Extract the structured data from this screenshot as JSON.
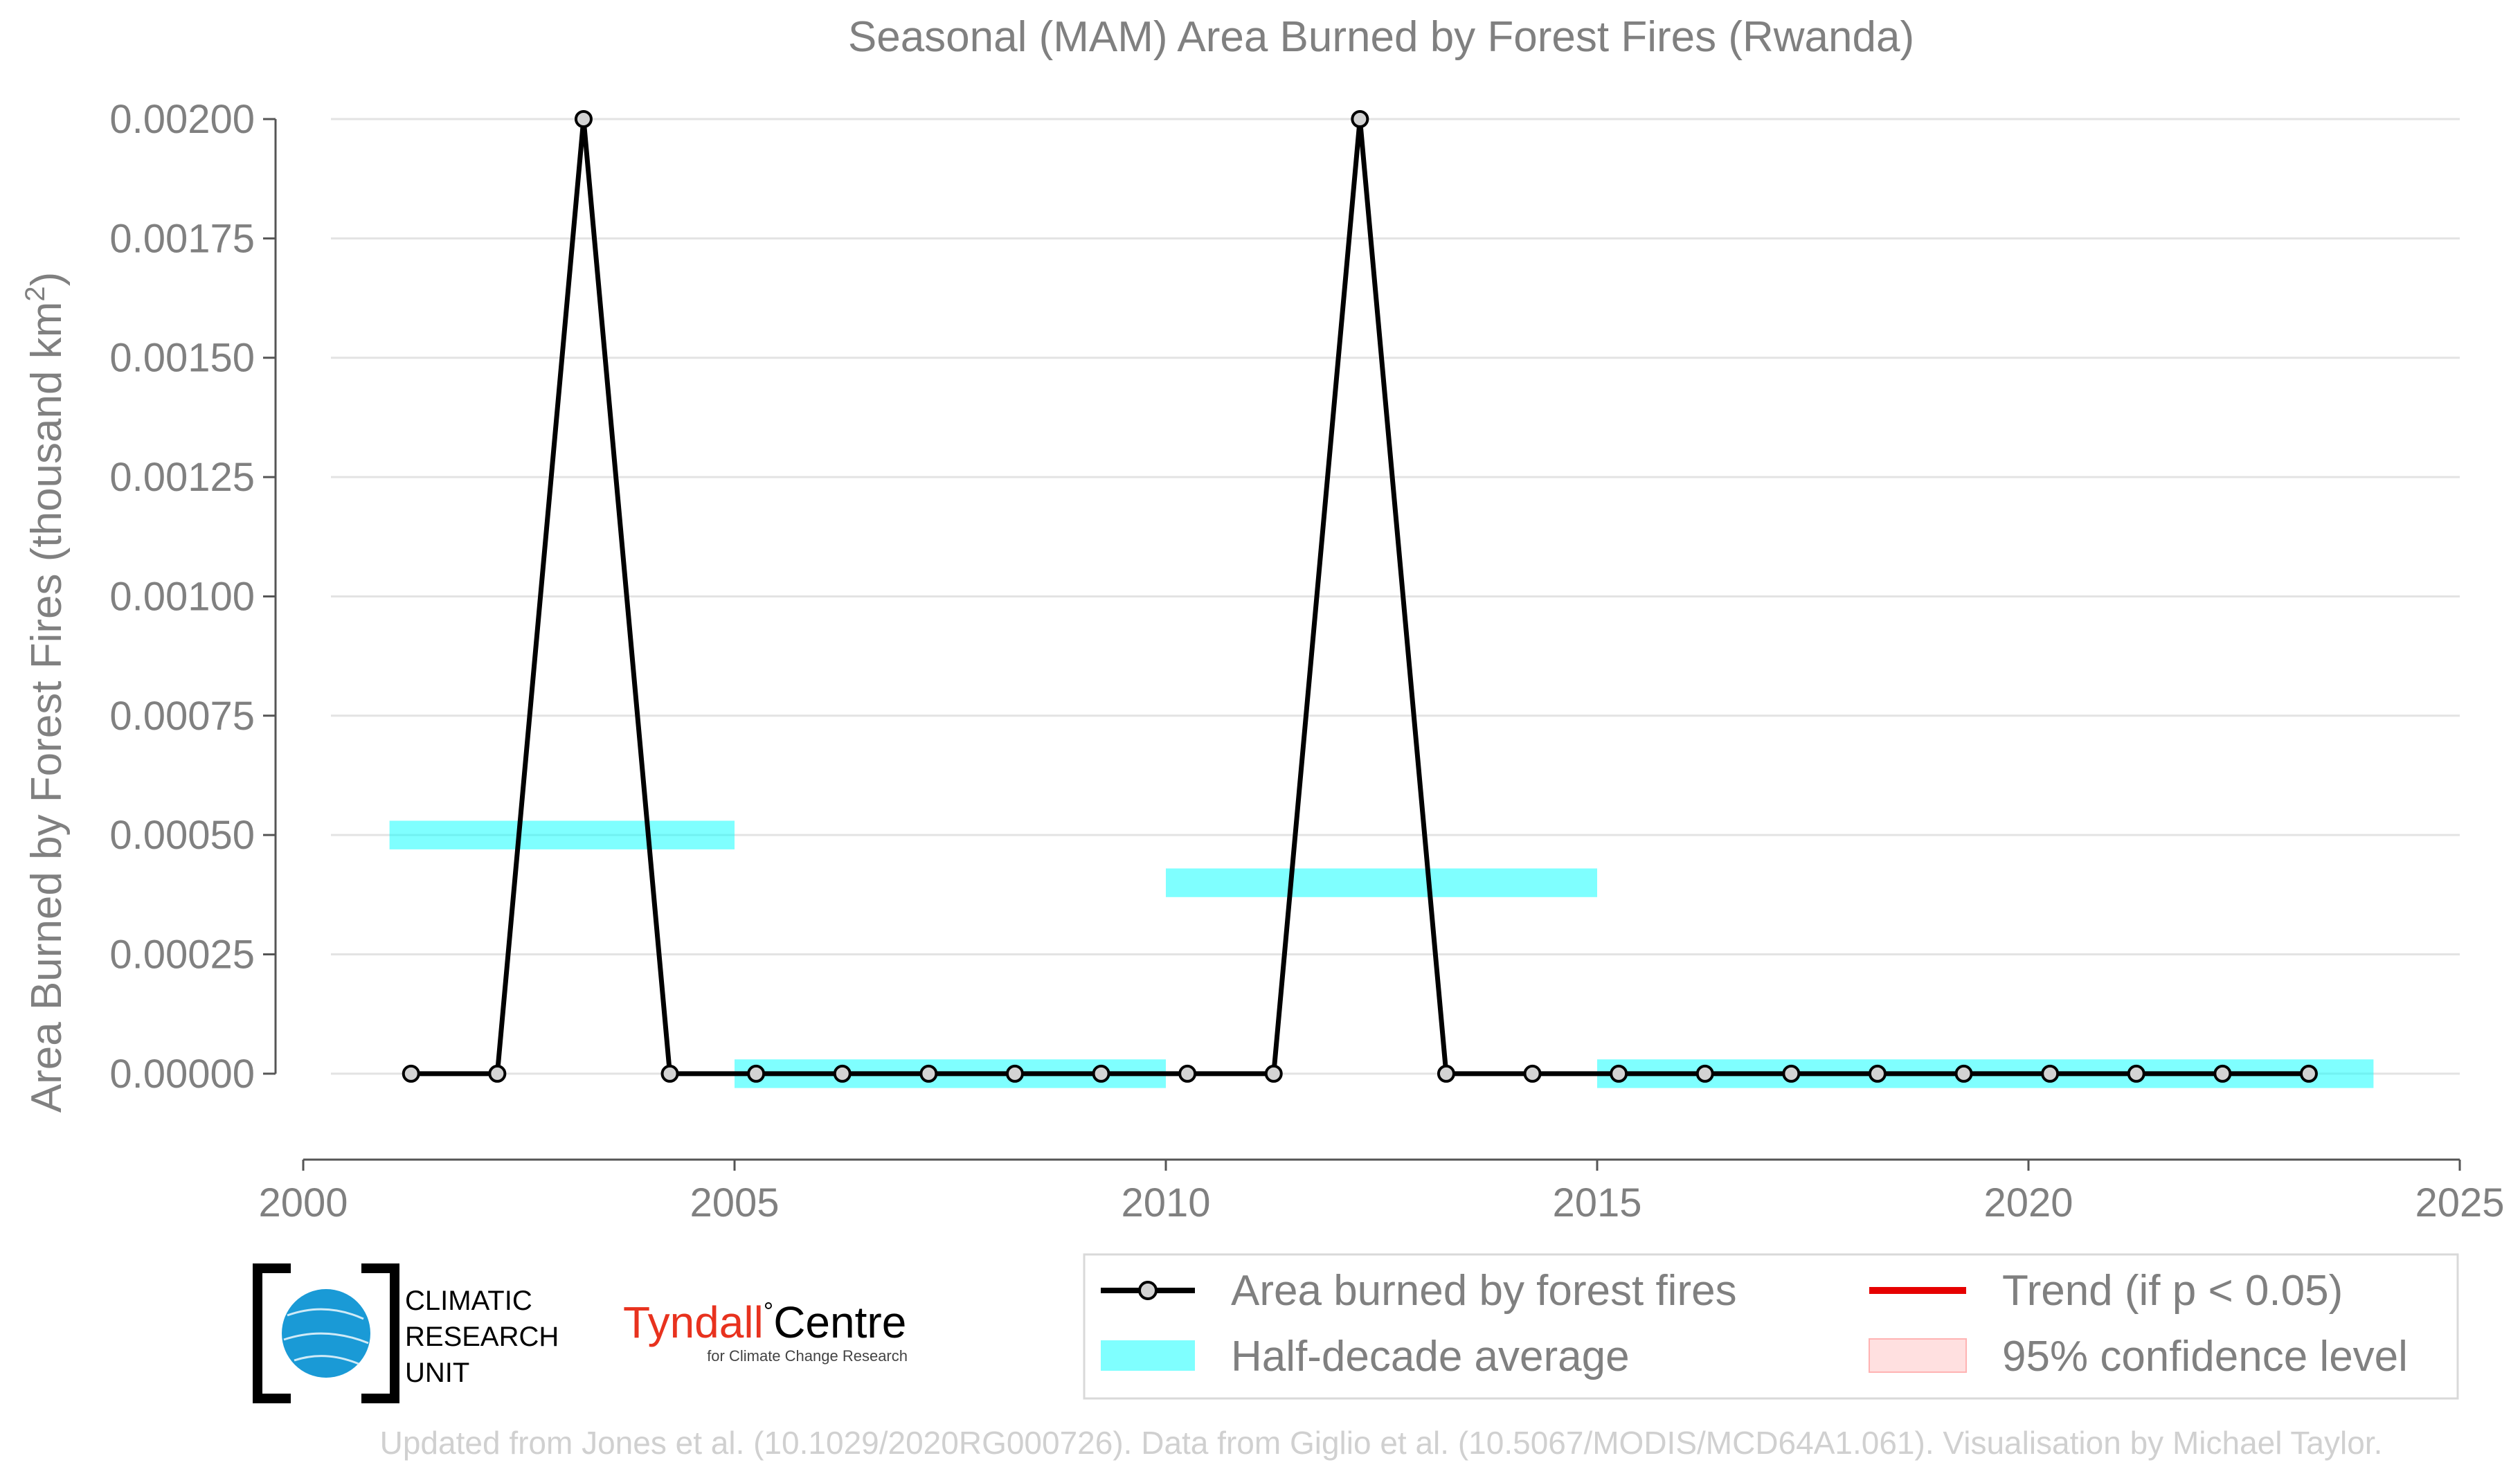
{
  "chart_data": {
    "type": "line",
    "title": "Seasonal (MAM) Area Burned by Forest Fires (Rwanda)",
    "ylabel": "Area Burned by Forest Fires (thousand km",
    "ylabel_sup": "2",
    "ylabel_end": ")",
    "xlabel": "",
    "xlim": [
      2000,
      2025
    ],
    "ylim": [
      -0.00018,
      0.002
    ],
    "x_ticks": [
      2000,
      2005,
      2010,
      2015,
      2020,
      2025
    ],
    "y_ticks": [
      0.0,
      0.00025,
      0.0005,
      0.00075,
      0.001,
      0.00125,
      0.0015,
      0.00175,
      0.002
    ],
    "y_tick_labels": [
      "0.00000",
      "0.00025",
      "0.00050",
      "0.00075",
      "0.00100",
      "0.00125",
      "0.00150",
      "0.00175",
      "0.00200"
    ],
    "grid": "horizontal",
    "series": [
      {
        "name": "Area burned by forest fires",
        "color": "#000000",
        "marker_fill": "#d3d3d3",
        "x": [
          2001.25,
          2002.25,
          2003.25,
          2004.25,
          2005.25,
          2006.25,
          2007.25,
          2008.25,
          2009.25,
          2010.25,
          2011.25,
          2012.25,
          2013.25,
          2014.25,
          2015.25,
          2016.25,
          2017.25,
          2018.25,
          2019.25,
          2020.25,
          2021.25,
          2022.25,
          2023.25
        ],
        "y": [
          0,
          0,
          0.002,
          0,
          0,
          0,
          0,
          0,
          0,
          0,
          0,
          0.002,
          0,
          0,
          0,
          0,
          0,
          0,
          0,
          0,
          0,
          0,
          0
        ]
      }
    ],
    "half_decade_average": {
      "name": "Half-decade average",
      "color": "#00ffff",
      "segments": [
        {
          "x_start": 2001,
          "x_end": 2005,
          "value": 0.0005
        },
        {
          "x_start": 2005,
          "x_end": 2010,
          "value": 0.0
        },
        {
          "x_start": 2010,
          "x_end": 2015,
          "value": 0.0004
        },
        {
          "x_start": 2015,
          "x_end": 2024,
          "value": 0.0
        }
      ]
    },
    "legend": {
      "placement": "bottom-right",
      "entries": [
        {
          "label": "Area burned by forest fires",
          "kind": "line-marker",
          "color": "#000000"
        },
        {
          "label": "Trend (if p < 0.05)",
          "kind": "line",
          "color": "#e60000"
        },
        {
          "label": "Half-decade average",
          "kind": "band",
          "color": "#00ffff"
        },
        {
          "label": "95% confidence level",
          "kind": "patch",
          "color": "#ffcccc"
        }
      ]
    },
    "credit": "Updated from Jones et al. (10.1029/2020RG000726). Data from Giglio et al. (10.5067/MODIS/MCD64A1.061). Visualisation by Michael Taylor."
  },
  "logos": {
    "cru": {
      "line1": "CLIMATIC",
      "line2": "RESEARCH",
      "line3": "UNIT",
      "globe_color": "#1a9ad6"
    },
    "tyndall": {
      "name_red": "Tyndall",
      "degree": "°",
      "name_black": "Centre",
      "sub": "for Climate Change Research",
      "red_color": "#e8321e"
    }
  }
}
